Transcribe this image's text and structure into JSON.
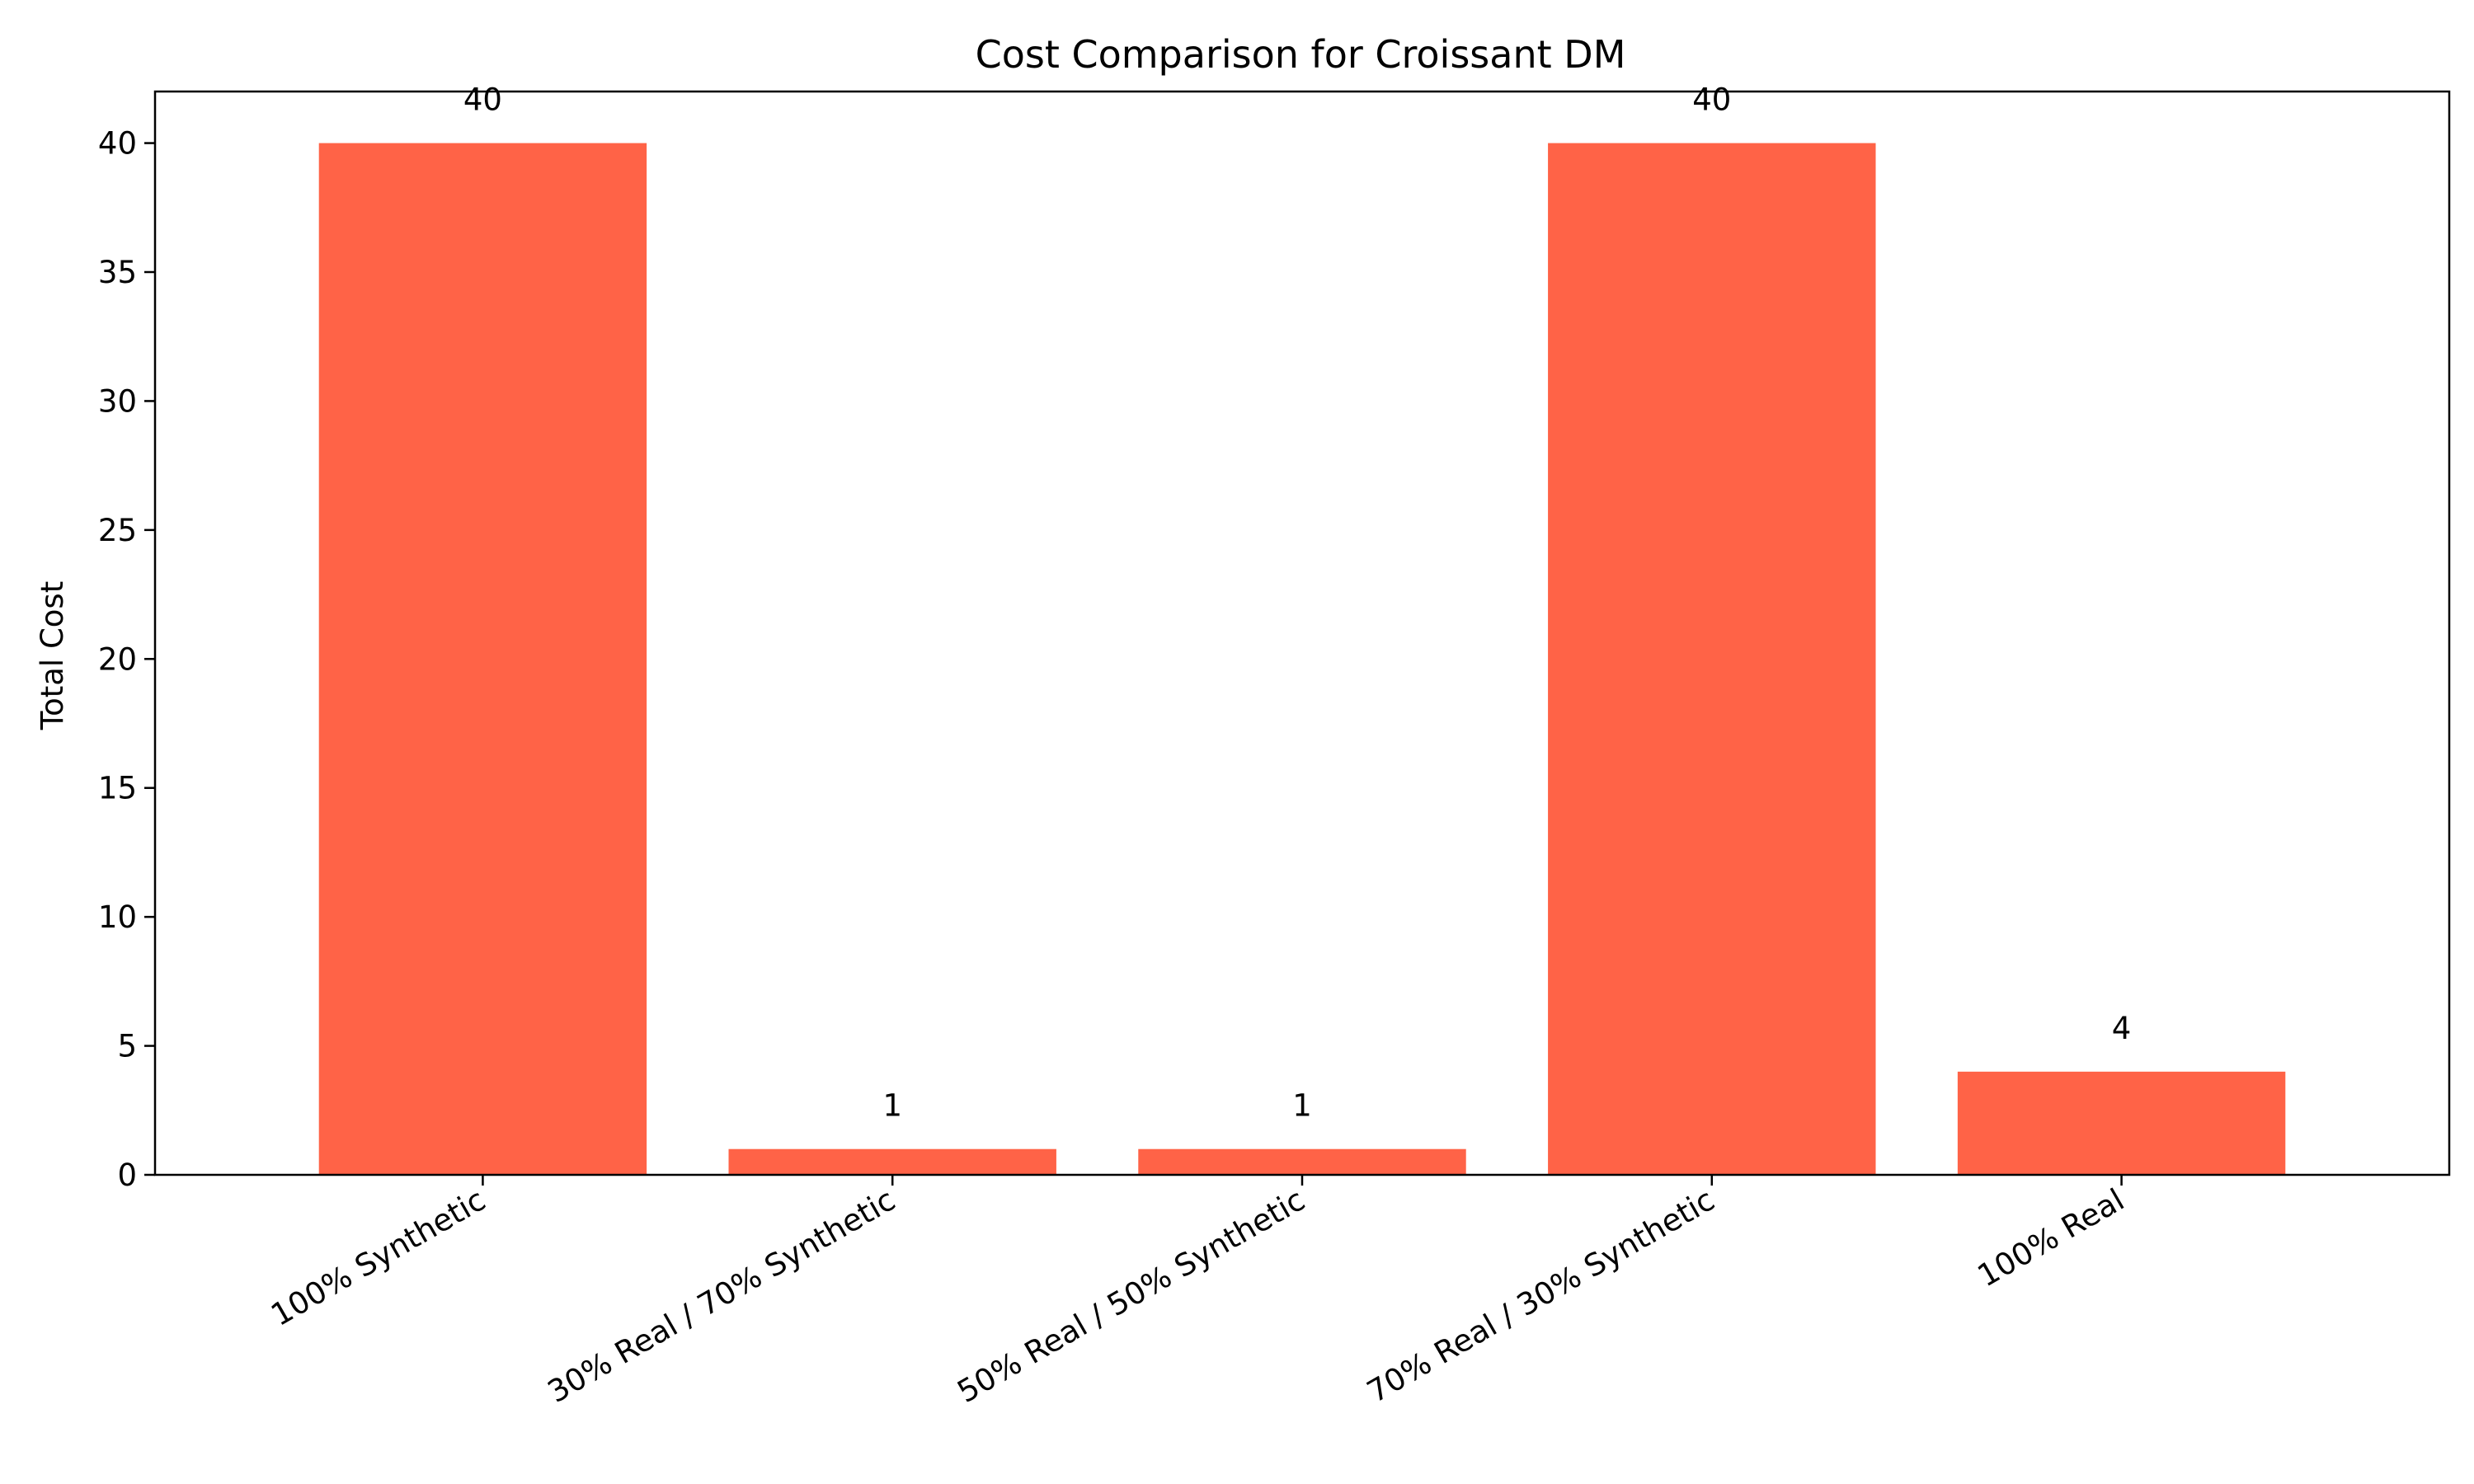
{
  "chart_data": {
    "type": "bar",
    "title": "Cost Comparison for Croissant DM",
    "xlabel": "",
    "ylabel": "Total Cost",
    "categories": [
      "100% Synthetic",
      "30% Real / 70% Synthetic",
      "50% Real / 50% Synthetic",
      "70% Real / 30% Synthetic",
      "100% Real"
    ],
    "values": [
      40,
      1,
      1,
      40,
      4
    ],
    "data_labels": [
      "40",
      "1",
      "1",
      "40",
      "4"
    ],
    "ylim": [
      0,
      42
    ],
    "yticks": [
      0,
      5,
      10,
      15,
      20,
      25,
      30,
      35,
      40
    ],
    "ytick_labels": [
      "0",
      "5",
      "10",
      "15",
      "20",
      "25",
      "30",
      "35",
      "40"
    ],
    "bar_color": "#ff6347",
    "grid": false,
    "legend": "none"
  }
}
